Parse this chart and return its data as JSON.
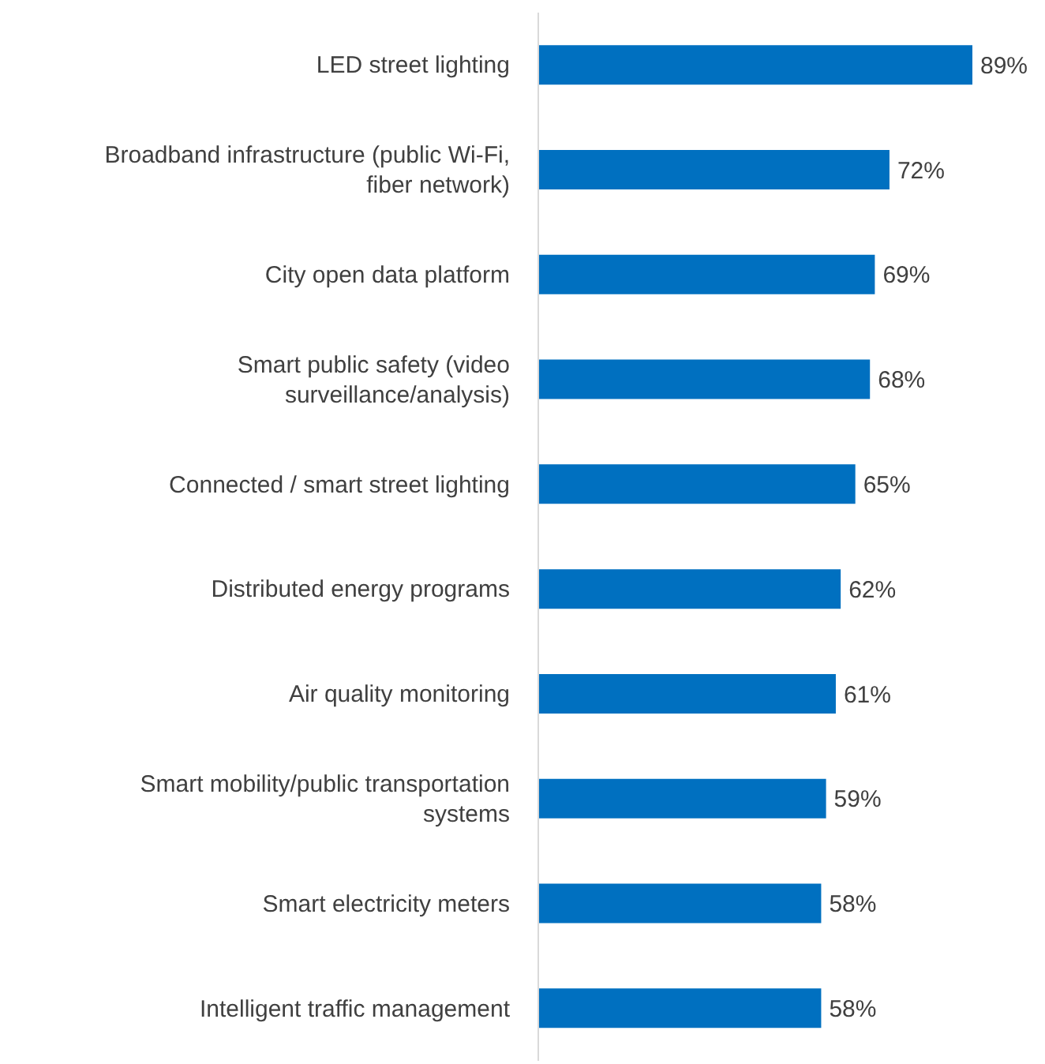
{
  "chart_data": {
    "type": "bar",
    "orientation": "horizontal",
    "categories": [
      "LED street lighting",
      "Broadband infrastructure (public Wi-Fi, fiber network)",
      "City open data platform",
      "Smart public safety (video surveillance/analysis)",
      "Connected / smart street lighting",
      "Distributed energy programs",
      "Air quality monitoring",
      "Smart mobility/public transportation systems",
      "Smart electricity meters",
      "Intelligent traffic management"
    ],
    "values": [
      89,
      72,
      69,
      68,
      65,
      62,
      61,
      59,
      58,
      58
    ],
    "value_labels": [
      "89%",
      "72%",
      "69%",
      "68%",
      "65%",
      "62%",
      "61%",
      "59%",
      "58%",
      "58%"
    ],
    "color": "#0070c0",
    "grid": false,
    "legend": false
  }
}
